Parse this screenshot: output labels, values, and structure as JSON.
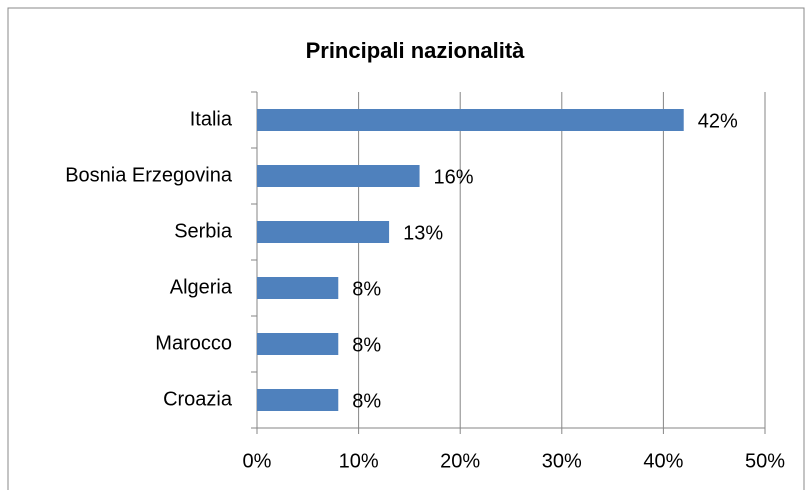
{
  "chart_data": {
    "type": "hbar",
    "title": "Principali nazionalità",
    "categories": [
      "Italia",
      "Bosnia Erzegovina",
      "Serbia",
      "Algeria",
      "Marocco",
      "Croazia"
    ],
    "values": [
      42,
      16,
      13,
      8,
      8,
      8
    ],
    "value_labels": [
      "42%",
      "16%",
      "13%",
      "8%",
      "8%",
      "8%"
    ],
    "color": "#4f81bd",
    "xlim": [
      0,
      50
    ],
    "xticks": [
      {
        "value": 0,
        "label": "0%"
      },
      {
        "value": 10,
        "label": "10%"
      },
      {
        "value": 20,
        "label": "20%"
      },
      {
        "value": 30,
        "label": "30%"
      },
      {
        "value": 40,
        "label": "40%"
      },
      {
        "value": 50,
        "label": "50%"
      }
    ],
    "grid": true
  }
}
